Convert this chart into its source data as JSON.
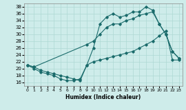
{
  "xlabel": "Humidex (Indice chaleur)",
  "xlim": [
    -0.5,
    23.5
  ],
  "ylim": [
    15,
    39
  ],
  "yticks": [
    16,
    18,
    20,
    22,
    24,
    26,
    28,
    30,
    32,
    34,
    36,
    38
  ],
  "xtick_labels": [
    "0",
    "1",
    "2",
    "3",
    "4",
    "5",
    "6",
    "7",
    "8",
    "9",
    "10",
    "11",
    "12",
    "13",
    "14",
    "15",
    "16",
    "17",
    "18",
    "19",
    "20",
    "21",
    "22",
    "23"
  ],
  "background_color": "#ceecea",
  "grid_color": "#aed8d4",
  "line_color": "#1a6b6b",
  "line1_x": [
    0,
    1,
    2,
    3,
    4,
    5,
    6,
    7,
    8,
    9,
    10,
    11,
    12,
    13,
    14,
    15,
    16,
    17,
    18,
    19,
    20,
    21,
    22,
    23
  ],
  "line1_y": [
    21,
    20,
    19,
    18.5,
    18,
    17,
    16.5,
    16.5,
    17,
    21,
    26,
    33,
    35,
    36,
    35,
    35.5,
    36.5,
    36.5,
    38,
    37,
    33,
    30,
    25,
    23
  ],
  "line2_x": [
    0,
    1,
    9,
    10,
    11,
    12,
    13,
    14,
    15,
    16,
    17,
    18,
    19,
    20,
    21,
    22,
    23
  ],
  "line2_y": [
    21,
    20.5,
    27,
    28,
    30,
    32,
    33,
    33,
    34,
    34.5,
    35.5,
    36,
    36.5,
    33,
    30,
    25,
    23
  ],
  "line3_x": [
    0,
    1,
    2,
    3,
    4,
    5,
    6,
    7,
    8,
    9,
    10,
    11,
    12,
    13,
    14,
    15,
    16,
    17,
    18,
    19,
    20,
    21,
    22,
    23
  ],
  "line3_y": [
    21,
    20.5,
    19.5,
    19,
    18.5,
    18,
    17.5,
    17,
    16.5,
    21,
    22,
    22.5,
    23,
    23.5,
    24,
    24.5,
    25,
    26,
    27,
    28,
    29.5,
    31,
    22.5,
    22.5
  ]
}
